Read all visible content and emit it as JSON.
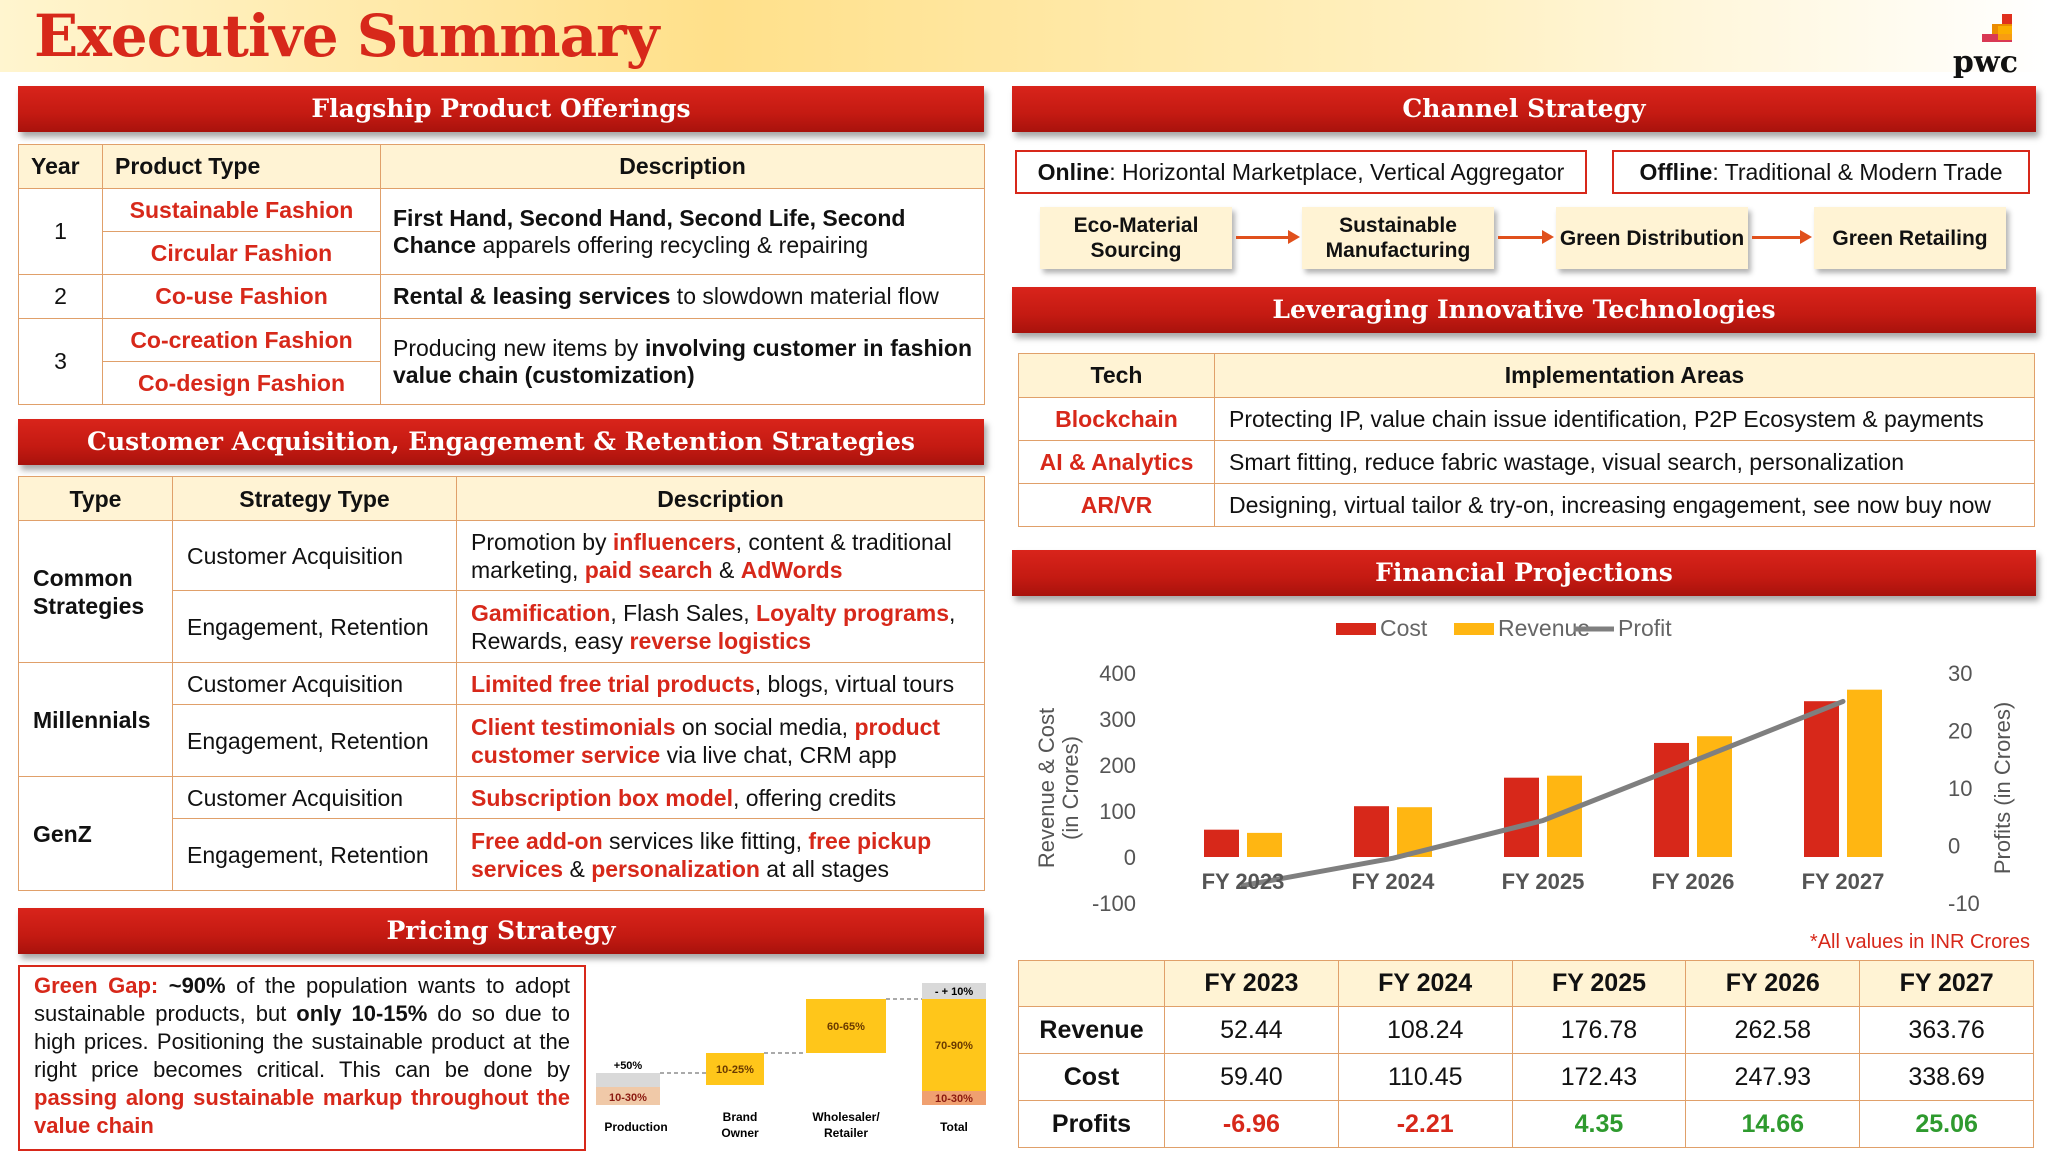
{
  "page_title": "Executive Summary",
  "logo_text": "pwc",
  "sections": {
    "flagship": "Flagship Product Offerings",
    "customer": "Customer Acquisition, Engagement & Retention Strategies",
    "pricing": "Pricing Strategy",
    "channel": "Channel Strategy",
    "tech": "Leveraging Innovative Technologies",
    "financial": "Financial Projections"
  },
  "flagship": {
    "headers": [
      "Year",
      "Product Type",
      "Description"
    ],
    "rows": [
      {
        "year": "1",
        "types": [
          "Sustainable Fashion",
          "Circular Fashion"
        ],
        "desc_bold": "First Hand, Second Hand, Second Life, Second Chance",
        "desc_rest": " apparels offering recycling & repairing"
      },
      {
        "year": "2",
        "types": [
          "Co-use Fashion"
        ],
        "desc_bold": "Rental & leasing services",
        "desc_rest": " to slowdown material flow"
      },
      {
        "year": "3",
        "types": [
          "Co-creation Fashion",
          "Co-design Fashion"
        ],
        "desc_pre": "Producing new items by ",
        "desc_bold": "involving customer in fashion value chain (customization)"
      }
    ]
  },
  "customer": {
    "headers": [
      "Type",
      "Strategy Type",
      "Description"
    ],
    "groups": [
      {
        "type": "Common Strategies",
        "rows": [
          {
            "strategy": "Customer Acquisition",
            "parts": [
              [
                "Promotion by ",
                0
              ],
              [
                "influencers",
                1
              ],
              [
                ", content & traditional marketing, ",
                0
              ],
              [
                "paid search",
                1
              ],
              [
                " & ",
                0
              ],
              [
                "AdWords",
                1
              ]
            ]
          },
          {
            "strategy": "Engagement, Retention",
            "parts": [
              [
                "Gamification",
                1
              ],
              [
                ", Flash Sales, ",
                0
              ],
              [
                "Loyalty programs",
                1
              ],
              [
                ", Rewards, easy ",
                0
              ],
              [
                "reverse logistics",
                1
              ]
            ]
          }
        ]
      },
      {
        "type": "Millennials",
        "rows": [
          {
            "strategy": "Customer Acquisition",
            "parts": [
              [
                "Limited free trial products",
                1
              ],
              [
                ", blogs, virtual tours",
                0
              ]
            ]
          },
          {
            "strategy": "Engagement, Retention",
            "parts": [
              [
                "Client testimonials",
                1
              ],
              [
                " on social media, ",
                0
              ],
              [
                "product customer service",
                1
              ],
              [
                " via live chat, CRM app",
                0
              ]
            ]
          }
        ]
      },
      {
        "type": "GenZ",
        "rows": [
          {
            "strategy": "Customer Acquisition",
            "parts": [
              [
                "Subscription box model",
                1
              ],
              [
                ", offering credits",
                0
              ]
            ]
          },
          {
            "strategy": "Engagement, Retention",
            "parts": [
              [
                "Free add-on",
                1
              ],
              [
                " services like fitting, ",
                0
              ],
              [
                "free pickup services",
                1
              ],
              [
                " & ",
                0
              ],
              [
                "personalization",
                1
              ],
              [
                " at all stages",
                0
              ]
            ]
          }
        ]
      }
    ]
  },
  "pricing": {
    "green_gap_label": "Green Gap:",
    "pct": "~90%",
    "t1": " of the population wants to adopt sustainable products, but ",
    "only": "only 10-15%",
    "t2": " do so due to high prices. Positioning the sustainable product at the right price becomes critical. This can be done by ",
    "markup": "passing along sustainable markup throughout the value chain"
  },
  "waterfall": {
    "stages": [
      "Production",
      "Brand Owner",
      "Wholesaler/ Retailer",
      "Total"
    ],
    "labels": {
      "production_base": "10-30%",
      "production_add": "+50%",
      "brand": "10-25%",
      "wholesale": "60-65%",
      "total_top": "- + 10%",
      "total_mid": "70-90%",
      "total_base": "10-30%"
    }
  },
  "channel": {
    "online_label": "Online",
    "online_text": ": Horizontal Marketplace, Vertical Aggregator",
    "offline_label": "Offline",
    "offline_text": ": Traditional & Modern Trade",
    "flow": [
      "Eco-Material Sourcing",
      "Sustainable Manufacturing",
      "Green Distribution",
      "Green Retailing"
    ]
  },
  "tech": {
    "headers": [
      "Tech",
      "Implementation Areas"
    ],
    "rows": [
      {
        "tech": "Blockchain",
        "area": "Protecting IP, value chain issue identification, P2P Ecosystem & payments"
      },
      {
        "tech": "AI & Analytics",
        "area": "Smart fitting, reduce fabric wastage, visual search, personalization"
      },
      {
        "tech": "AR/VR",
        "area": "Designing, virtual tailor & try-on, increasing engagement, see now buy now"
      }
    ]
  },
  "chart_data": {
    "type": "bar",
    "categories": [
      "FY 2023",
      "FY 2024",
      "FY 2025",
      "FY 2026",
      "FY 2027"
    ],
    "series": [
      {
        "name": "Cost",
        "values": [
          59.4,
          110.45,
          172.43,
          247.93,
          338.69
        ],
        "color": "#d7281a",
        "axis": "left"
      },
      {
        "name": "Revenue",
        "values": [
          52.44,
          108.24,
          176.78,
          262.58,
          363.76
        ],
        "color": "#ffb612",
        "axis": "left"
      },
      {
        "name": "Profit",
        "type": "line",
        "values": [
          -6.96,
          -2.21,
          4.35,
          14.66,
          25.06
        ],
        "color": "#7f7f7f",
        "axis": "right"
      }
    ],
    "ylabel": "Revenue & Cost (in Crores)",
    "ylabel_right": "Profits (in Crores)",
    "ylim": [
      -100,
      400
    ],
    "ylim_right": [
      -10,
      30
    ],
    "yticks": [
      "400",
      "300",
      "200",
      "100",
      "0",
      "-100"
    ],
    "yticks_right": [
      "30",
      "20",
      "10",
      "0",
      "-10"
    ],
    "legend": "top"
  },
  "financial": {
    "note": "*All values in INR Crores",
    "headers": [
      "",
      "FY 2023",
      "FY 2024",
      "FY 2025",
      "FY 2026",
      "FY 2027"
    ],
    "rows": [
      {
        "label": "Revenue",
        "values": [
          "52.44",
          "108.24",
          "176.78",
          "262.58",
          "363.76"
        ]
      },
      {
        "label": "Cost",
        "values": [
          "59.40",
          "110.45",
          "172.43",
          "247.93",
          "338.69"
        ]
      },
      {
        "label": "Profits",
        "values": [
          "-6.96",
          "-2.21",
          "4.35",
          "14.66",
          "25.06"
        ]
      }
    ]
  }
}
